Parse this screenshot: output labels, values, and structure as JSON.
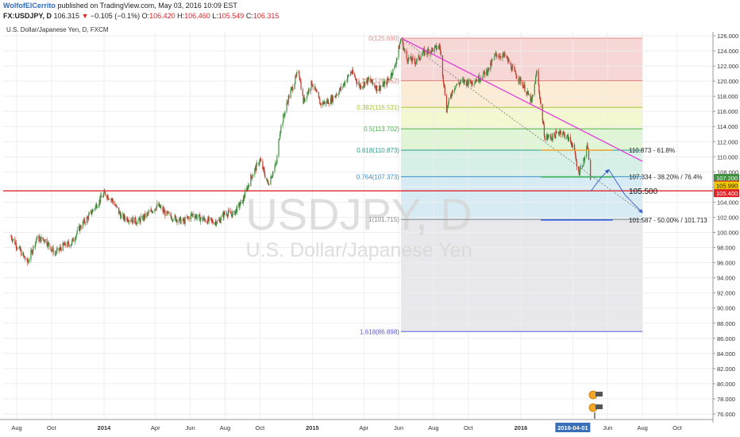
{
  "header": {
    "author": "WolfofElCerrito",
    "published_text": "published on TradingView.com, May 03, 2016 10:09 EST",
    "symbol": "FX:USDJPY, D",
    "last_price": "106.315",
    "change_arrow": "▼",
    "change": "−0.105 (−0.1%)",
    "open_label": "O:",
    "open_value": "106.420",
    "high_label": "H:",
    "high_value": "106.460",
    "low_label": "L:",
    "low_value": "105.549",
    "close_label": "C:",
    "close_value": "106.315"
  },
  "symbol_description": "U.S. Dollar/Japanese Yen, D, FXCM",
  "watermark": {
    "symbol": "USDJPY, D",
    "description": "U.S. Dollar/Japanese Yen"
  },
  "colors": {
    "candle_up": "#3f8f3f",
    "candle_down": "#c0392b",
    "trendline": "#e040d8",
    "support_line": "#e0262b",
    "fib_level_line": "#2a5ad6",
    "dotted_line": "#777777",
    "arrow": "#3a5fc8"
  },
  "chart_data": {
    "type": "candlestick",
    "symbol": "USDJPY",
    "timeframe": "D",
    "ylim": [
      75.5,
      127.5
    ],
    "x_tick_labels": [
      "Aug",
      "Oct",
      "2014",
      "Apr",
      "Jun",
      "Aug",
      "Oct",
      "2015",
      "Apr",
      "Jun",
      "Aug",
      "Oct",
      "2016",
      "2016-04-01",
      "Jun",
      "Aug",
      "Oct"
    ],
    "y_tick_labels": [
      "126.000",
      "124.000",
      "122.000",
      "120.000",
      "118.000",
      "116.000",
      "114.000",
      "112.000",
      "110.000",
      "108.000",
      "106.000",
      "104.000",
      "102.000",
      "100.000",
      "98.000",
      "96.000",
      "94.000",
      "92.000",
      "90.000",
      "88.000",
      "86.000",
      "84.000",
      "82.000",
      "80.000",
      "78.000",
      "76.000"
    ],
    "price_badges": [
      {
        "label": "107.200",
        "value": 107.2,
        "color": "#3f8f3f"
      },
      {
        "label": "106.315",
        "value": 106.315,
        "color": "#e0262b"
      },
      {
        "label": "105.990",
        "value": 105.99,
        "color": "#f0c800"
      },
      {
        "label": "105.400",
        "value": 105.4,
        "color": "#e0262b"
      }
    ],
    "price_path": [
      [
        "2013-07-22",
        99.5
      ],
      [
        "2013-08-05",
        97.8
      ],
      [
        "2013-08-20",
        96.0
      ],
      [
        "2013-09-05",
        99.2
      ],
      [
        "2013-09-20",
        99.0
      ],
      [
        "2013-10-07",
        97.2
      ],
      [
        "2013-10-21",
        98.2
      ],
      [
        "2013-11-05",
        98.6
      ],
      [
        "2013-11-20",
        100.7
      ],
      [
        "2013-12-05",
        102.1
      ],
      [
        "2013-12-20",
        103.8
      ],
      [
        "2014-01-02",
        105.2
      ],
      [
        "2014-01-15",
        104.3
      ],
      [
        "2014-02-01",
        102.0
      ],
      [
        "2014-02-15",
        101.8
      ],
      [
        "2014-03-01",
        101.4
      ],
      [
        "2014-03-20",
        102.5
      ],
      [
        "2014-04-05",
        103.6
      ],
      [
        "2014-04-20",
        102.4
      ],
      [
        "2014-05-05",
        101.9
      ],
      [
        "2014-05-20",
        101.4
      ],
      [
        "2014-06-05",
        102.4
      ],
      [
        "2014-06-20",
        101.8
      ],
      [
        "2014-07-05",
        101.5
      ],
      [
        "2014-07-20",
        101.4
      ],
      [
        "2014-08-01",
        102.6
      ],
      [
        "2014-08-15",
        102.4
      ],
      [
        "2014-09-01",
        104.2
      ],
      [
        "2014-09-15",
        107.2
      ],
      [
        "2014-10-01",
        109.6
      ],
      [
        "2014-10-15",
        106.4
      ],
      [
        "2014-10-30",
        109.2
      ],
      [
        "2014-11-05",
        113.4
      ],
      [
        "2014-11-20",
        117.8
      ],
      [
        "2014-12-08",
        121.4
      ],
      [
        "2014-12-16",
        117.3
      ],
      [
        "2014-12-31",
        119.8
      ],
      [
        "2015-01-15",
        117.0
      ],
      [
        "2015-02-01",
        117.4
      ],
      [
        "2015-02-20",
        119.0
      ],
      [
        "2015-03-10",
        121.3
      ],
      [
        "2015-03-25",
        119.3
      ],
      [
        "2015-04-10",
        120.2
      ],
      [
        "2015-04-25",
        119.0
      ],
      [
        "2015-05-10",
        119.7
      ],
      [
        "2015-05-25",
        121.8
      ],
      [
        "2015-06-05",
        125.6
      ],
      [
        "2015-06-15",
        123.0
      ],
      [
        "2015-07-01",
        122.6
      ],
      [
        "2015-07-15",
        123.8
      ],
      [
        "2015-07-31",
        124.2
      ],
      [
        "2015-08-12",
        124.6
      ],
      [
        "2015-08-24",
        116.3
      ],
      [
        "2015-09-05",
        119.2
      ],
      [
        "2015-09-20",
        120.0
      ],
      [
        "2015-10-05",
        119.8
      ],
      [
        "2015-10-20",
        120.4
      ],
      [
        "2015-11-05",
        121.5
      ],
      [
        "2015-11-18",
        123.5
      ],
      [
        "2015-12-05",
        123.3
      ],
      [
        "2015-12-20",
        121.2
      ],
      [
        "2016-01-05",
        119.5
      ],
      [
        "2016-01-20",
        117.2
      ],
      [
        "2016-01-29",
        121.3
      ],
      [
        "2016-02-05",
        116.8
      ],
      [
        "2016-02-12",
        112.6
      ],
      [
        "2016-02-25",
        112.6
      ],
      [
        "2016-03-10",
        113.4
      ],
      [
        "2016-03-22",
        112.6
      ],
      [
        "2016-04-01",
        111.6
      ],
      [
        "2016-04-11",
        107.9
      ],
      [
        "2016-04-20",
        109.4
      ],
      [
        "2016-04-27",
        111.4
      ],
      [
        "2016-05-03",
        106.3
      ]
    ],
    "annotations": {
      "fib_retracement": {
        "start": "2015-06-05",
        "end": "2016-08-01",
        "levels": [
          {
            "label": "0(125.690)",
            "value": 125.69,
            "fill": "#f4c8c8",
            "line": "#e08c8c"
          },
          {
            "label": "0.236(120.052)",
            "value": 120.052,
            "fill": "#fbe5c8",
            "line": "#e0827a"
          },
          {
            "label": "0.382(116.531)",
            "value": 116.531,
            "fill": "#f0f5c0",
            "line": "#a9c43c"
          },
          {
            "label": "0.5(113.702)",
            "value": 113.702,
            "fill": "#d5f0c8",
            "line": "#4faf4f"
          },
          {
            "label": "0.618(110.873)",
            "value": 110.873,
            "fill": "#c8eadf",
            "line": "#2c9a88"
          },
          {
            "label": "0.764(107.373)",
            "value": 107.373,
            "fill": "#c8e4f0",
            "line": "#3a8fc8"
          },
          {
            "label": "1(101.715)",
            "value": 101.715,
            "fill": "#e0e0e6",
            "line": "#888888"
          },
          {
            "label": "1.618(86.898)",
            "value": 86.898,
            "fill": "#cfd0f4",
            "line": "#5a5ad6"
          }
        ]
      },
      "trendline": {
        "from": [
          "2015-06-05",
          125.7
        ],
        "to": [
          "2016-08-01",
          109.4
        ]
      },
      "dotted_line": {
        "from": [
          "2015-06-05",
          125.7
        ],
        "to": [
          "2016-08-01",
          102.6
        ]
      },
      "horizontal_support": {
        "value": 105.5,
        "label": "105.500"
      },
      "level_lines": [
        {
          "from": "2016-02-05",
          "to": "2016-06-10",
          "value": 110.873,
          "label": "110.873 - 61.8%",
          "color": "#f0a030"
        },
        {
          "from": "2016-02-05",
          "to": "2016-06-10",
          "value": 107.334,
          "label": "107.334 - 38.20% / 76.4%",
          "color": "#3fb35a"
        },
        {
          "from": "2016-02-05",
          "to": "2016-06-10",
          "value": 101.65,
          "label": "101.587 - 50.00% / 101.713",
          "color": "#2a5ad6"
        }
      ],
      "projection_arrows": [
        [
          [
            "2016-05-03",
            105.5
          ],
          [
            "2016-05-20",
            107.2
          ],
          [
            "2016-06-03",
            108.3
          ]
        ],
        [
          [
            "2016-06-03",
            108.3
          ],
          [
            "2016-07-01",
            105.0
          ],
          [
            "2016-08-01",
            102.6
          ]
        ]
      ]
    }
  }
}
